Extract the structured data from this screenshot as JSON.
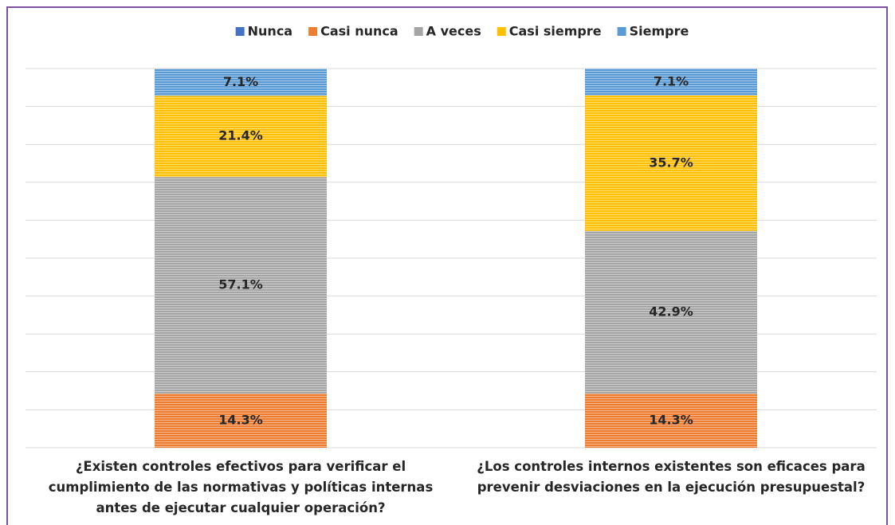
{
  "chart_data": {
    "type": "stacked_bar",
    "categories": [
      "¿Existen controles efectivos para verificar el cumplimiento de las normativas y políticas internas antes de ejecutar cualquier operación?",
      "¿Los controles internos existentes son eficaces para prevenir desviaciones en la ejecución presupuestal?"
    ],
    "series": [
      {
        "name": "Nunca",
        "color": "#4472c4",
        "values": [
          0,
          0
        ]
      },
      {
        "name": "Casi nunca",
        "color": "#ed7d31",
        "values": [
          14.3,
          14.3
        ],
        "value_labels": [
          "14.3%",
          "14.3%"
        ]
      },
      {
        "name": "A veces",
        "color": "#a5a5a5",
        "values": [
          57.1,
          42.9
        ],
        "value_labels": [
          "57.1%",
          "42.9%"
        ]
      },
      {
        "name": "Casi siempre",
        "color": "#ffc000",
        "values": [
          21.4,
          35.7
        ],
        "value_labels": [
          "21.4%",
          "35.7%"
        ]
      },
      {
        "name": "Siempre",
        "color": "#5b9bd5",
        "values": [
          7.1,
          7.1
        ],
        "value_labels": [
          "7.1%",
          "7.1%"
        ]
      }
    ],
    "ylim": [
      0,
      100
    ],
    "yticks": [
      0,
      10,
      20,
      30,
      40,
      50,
      60,
      70,
      80,
      90,
      100
    ],
    "grid": true,
    "legend": "top"
  }
}
